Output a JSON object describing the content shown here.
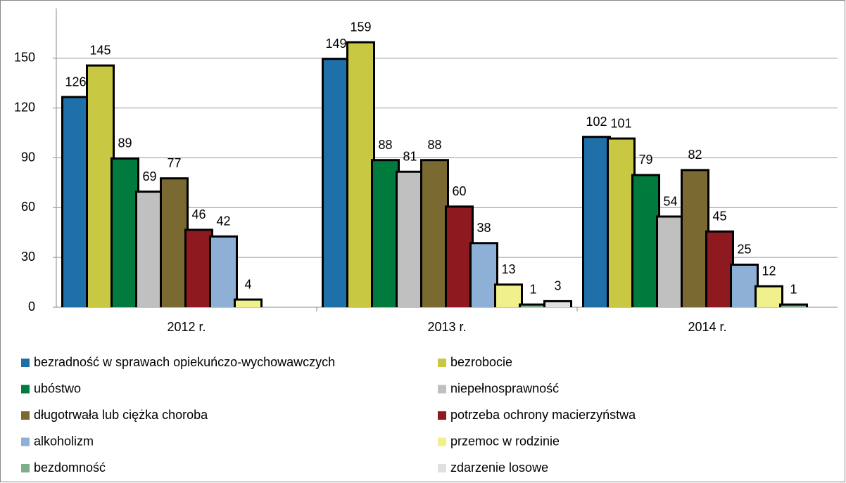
{
  "chart_data": {
    "type": "bar",
    "categories": [
      "2012 r.",
      "2013 r.",
      "2014 r."
    ],
    "series": [
      {
        "name": "bezradność w sprawach opiekuńczo-wychowawczych",
        "color": "#1f70a8",
        "values": [
          126,
          149,
          102
        ]
      },
      {
        "name": "bezrobocie",
        "color": "#c9c843",
        "values": [
          145,
          159,
          101
        ]
      },
      {
        "name": "ubóstwo",
        "color": "#007a3d",
        "values": [
          89,
          88,
          79
        ]
      },
      {
        "name": "niepełnosprawność",
        "color": "#c0c0c0",
        "values": [
          69,
          81,
          54
        ]
      },
      {
        "name": "długotrwała lub ciężka choroba",
        "color": "#7a6a32",
        "values": [
          77,
          88,
          82
        ]
      },
      {
        "name": "potrzeba ochrony macierzyństwa",
        "color": "#8e1a20",
        "values": [
          46,
          60,
          45
        ]
      },
      {
        "name": "alkoholizm",
        "color": "#8fb0d6",
        "values": [
          42,
          38,
          25
        ]
      },
      {
        "name": "przemoc w rodzinie",
        "color": "#f0f08c",
        "values": [
          4,
          13,
          12
        ]
      },
      {
        "name": "bezdomność",
        "color": "#7fae8c",
        "values": [
          null,
          1,
          1
        ]
      },
      {
        "name": "zdarzenie losowe",
        "color": "#e0e0e0",
        "values": [
          null,
          3,
          null
        ]
      }
    ],
    "ylim": [
      0,
      180
    ],
    "yticks": [
      0,
      30,
      60,
      90,
      120,
      150
    ],
    "grid": true
  }
}
